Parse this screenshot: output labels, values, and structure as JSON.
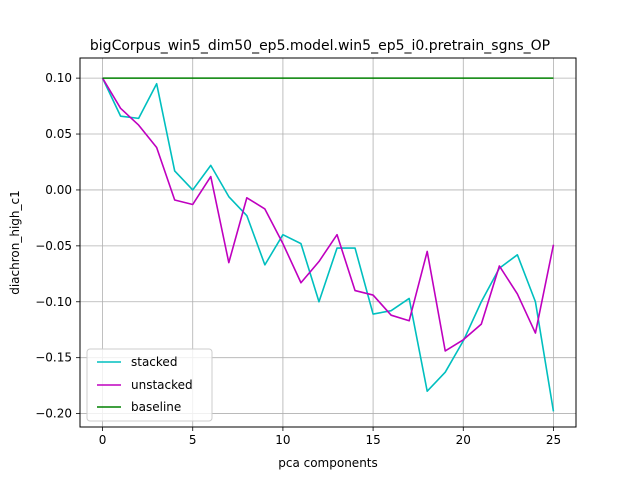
{
  "chart_data": {
    "type": "line",
    "title": "bigCorpus_win5_dim50_ep5.model.win5_ep5_i0.pretrain_sgns_OP",
    "xlabel": "pca components",
    "ylabel": "diachron_high_c1",
    "xlim": [
      -1.25,
      26.25
    ],
    "ylim": [
      -0.212,
      0.118
    ],
    "xticks": [
      0,
      5,
      10,
      15,
      20,
      25
    ],
    "yticks": [
      0.1,
      0.05,
      0.0,
      -0.05,
      -0.1,
      -0.15,
      -0.2
    ],
    "ytick_labels": [
      "0.10",
      "0.05",
      "0.00",
      "−0.05",
      "−0.10",
      "−0.15",
      "−0.20"
    ],
    "grid": true,
    "legend_position": "lower-left",
    "x": [
      0,
      1,
      2,
      3,
      4,
      5,
      6,
      7,
      8,
      9,
      10,
      11,
      12,
      13,
      14,
      15,
      16,
      17,
      18,
      19,
      20,
      21,
      22,
      23,
      24,
      25
    ],
    "series": [
      {
        "name": "stacked",
        "color": "#00bfbf",
        "values": [
          0.1,
          0.066,
          0.064,
          0.095,
          0.017,
          0.0,
          0.022,
          -0.006,
          -0.023,
          -0.067,
          -0.04,
          -0.048,
          -0.1,
          -0.052,
          -0.052,
          -0.111,
          -0.108,
          -0.097,
          -0.18,
          -0.163,
          -0.135,
          -0.1,
          -0.07,
          -0.058,
          -0.1,
          -0.198
        ]
      },
      {
        "name": "unstacked",
        "color": "#bf00bf",
        "values": [
          0.1,
          0.073,
          0.058,
          0.038,
          -0.009,
          -0.013,
          0.012,
          -0.065,
          -0.007,
          -0.017,
          -0.048,
          -0.083,
          -0.064,
          -0.04,
          -0.09,
          -0.094,
          -0.112,
          -0.117,
          -0.055,
          -0.144,
          -0.134,
          -0.12,
          -0.068,
          -0.093,
          -0.128,
          -0.049
        ]
      },
      {
        "name": "baseline",
        "color": "#008000",
        "values": [
          0.1,
          0.1,
          0.1,
          0.1,
          0.1,
          0.1,
          0.1,
          0.1,
          0.1,
          0.1,
          0.1,
          0.1,
          0.1,
          0.1,
          0.1,
          0.1,
          0.1,
          0.1,
          0.1,
          0.1,
          0.1,
          0.1,
          0.1,
          0.1,
          0.1,
          0.1
        ]
      }
    ]
  }
}
